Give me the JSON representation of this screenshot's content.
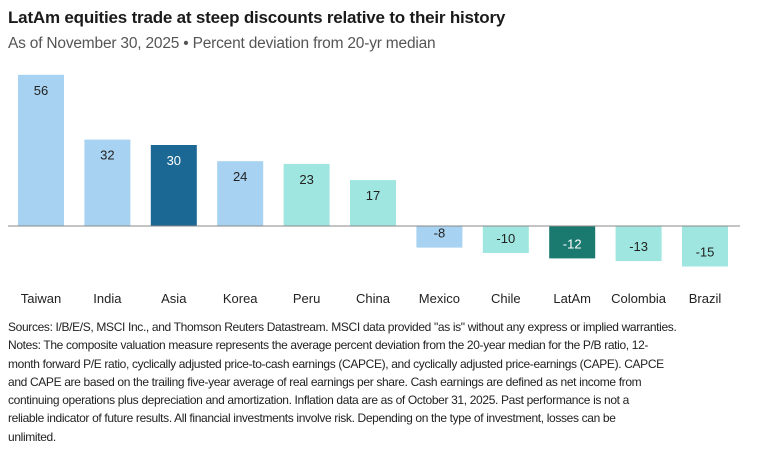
{
  "chart_data": {
    "type": "bar",
    "title": "LatAm equities trade at steep discounts relative to their history",
    "subtitle": "As of November 30, 2025 • Percent deviation from 20-yr median",
    "categories": [
      "Taiwan",
      "India",
      "Asia",
      "Korea",
      "Peru",
      "China",
      "Mexico",
      "Chile",
      "LatAm",
      "Colombia",
      "Brazil"
    ],
    "values": [
      56,
      32,
      30,
      24,
      23,
      17,
      -8,
      -10,
      -12,
      -13,
      -15
    ],
    "colors": [
      "#a7d2f1",
      "#a7d2f1",
      "#1c6894",
      "#a7d2f1",
      "#9ee6df",
      "#9ee6df",
      "#a7d2f1",
      "#9ee6df",
      "#1b7a6f",
      "#9ee6df",
      "#9ee6df"
    ],
    "label_colors": [
      "#222",
      "#222",
      "#fff",
      "#222",
      "#222",
      "#222",
      "#222",
      "#222",
      "#fff",
      "#222",
      "#222"
    ],
    "grid": false,
    "legend": "none"
  },
  "notes": [
    "Sources: I/B/E/S, MSCI Inc., and Thomson Reuters Datastream. MSCI data provided \"as is\" without any express or implied warranties.",
    "Notes: The composite valuation measure represents the average percent deviation from the 20-year median for the P/B ratio, 12-",
    "month forward P/E ratio, cyclically adjusted price-to-cash earnings (CAPCE), and cyclically adjusted price-earnings (CAPE). CAPCE",
    "and CAPE are based on the trailing five-year average of real earnings per share. Cash earnings are defined as net income from",
    "continuing operations plus depreciation and amortization. Inflation data are as of October 31, 2025. Past performance is not a",
    "reliable indicator of future results. All financial investments involve risk. Depending on the type of investment, losses can be",
    "unlimited."
  ]
}
